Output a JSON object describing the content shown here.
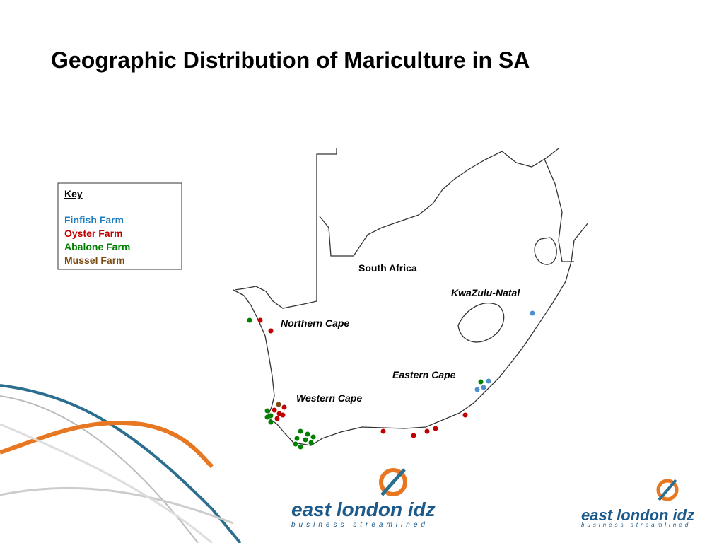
{
  "title": "Geographic Distribution of Mariculture in SA",
  "key": {
    "heading": "Key",
    "items": [
      {
        "label": "Finfish Farm",
        "color": "#1f7fc0"
      },
      {
        "label": "Oyster Farm",
        "color": "#c00000"
      },
      {
        "label": "Abalone Farm",
        "color": "#008000"
      },
      {
        "label": "Mussel Farm",
        "color": "#7a4a10"
      }
    ]
  },
  "regions": [
    "South Africa",
    "KwaZulu-Natal",
    "Northern Cape",
    "Eastern Cape",
    "Western Cape"
  ],
  "logo": {
    "name": "east london idz",
    "tagline": "business streamlined"
  }
}
